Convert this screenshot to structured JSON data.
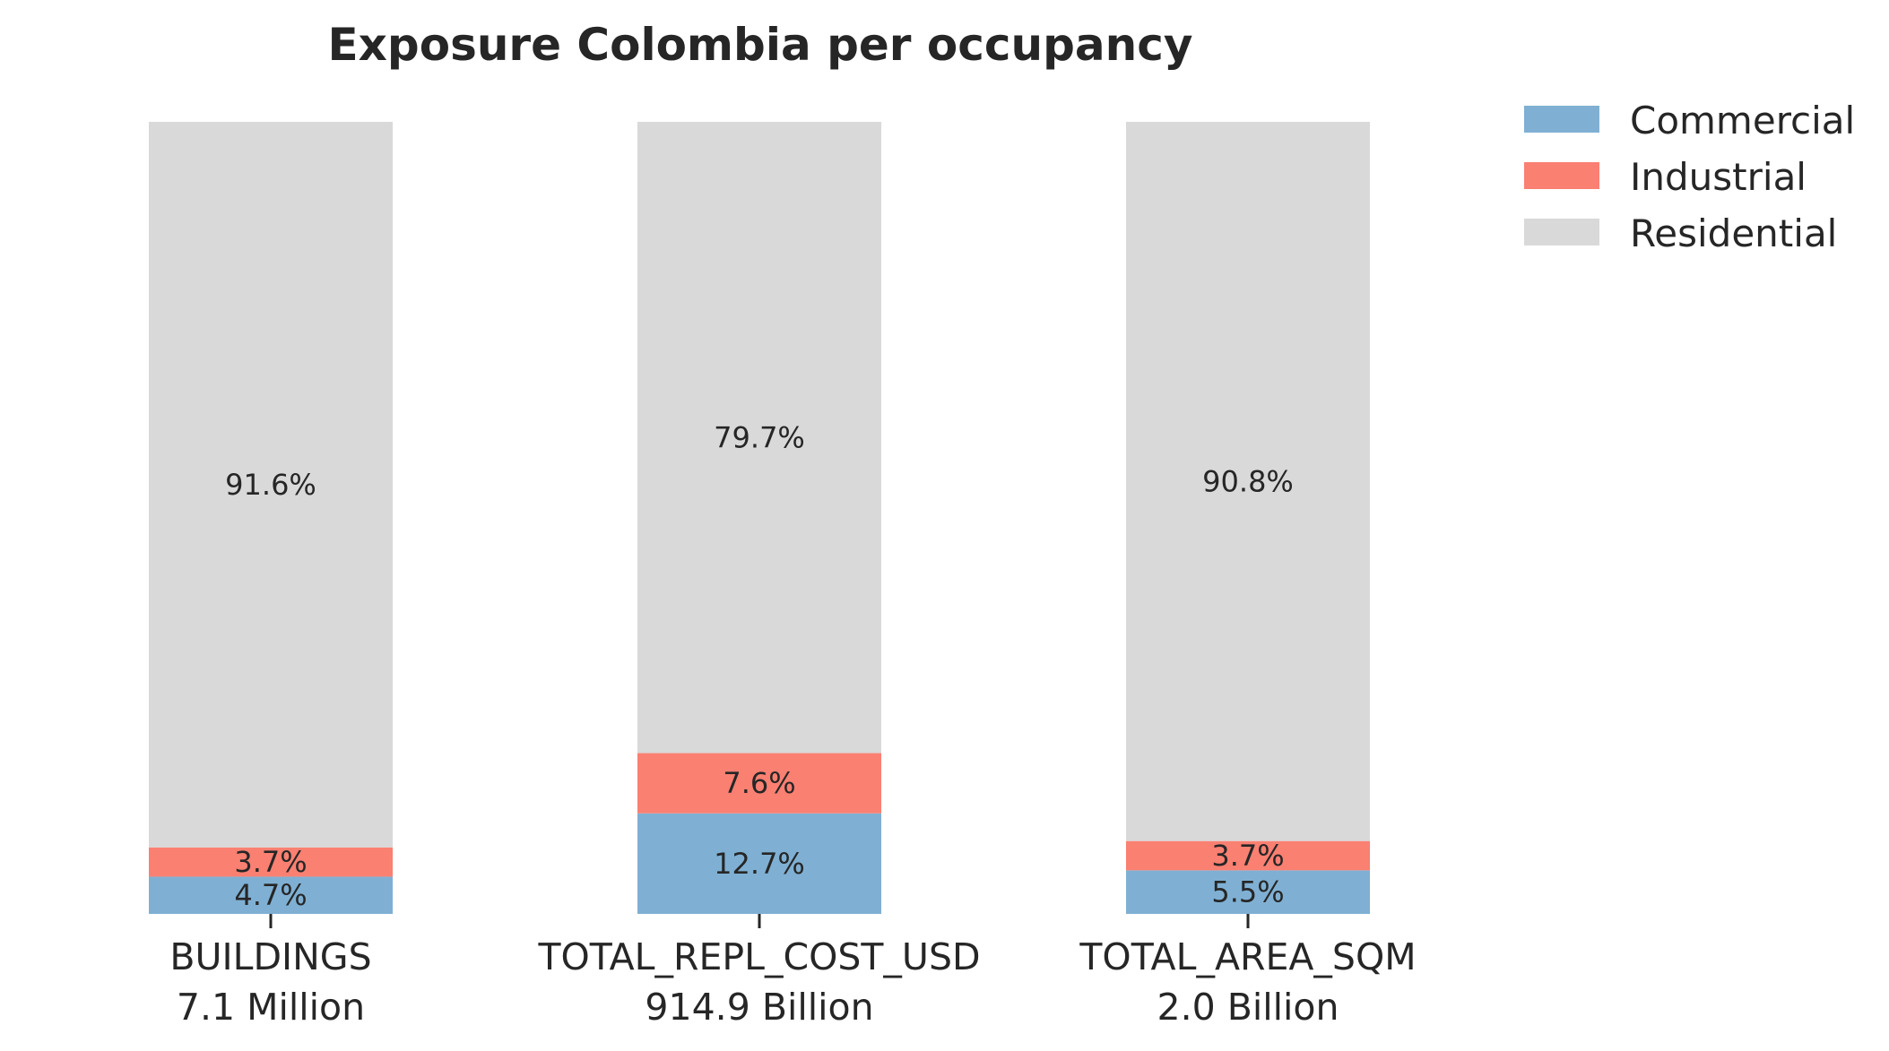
{
  "chart_data": {
    "type": "bar",
    "stacked": true,
    "normalized": true,
    "title": "Exposure Colombia per occupancy",
    "xlabel": "",
    "ylabel": "",
    "ylim": [
      0,
      100
    ],
    "grid": false,
    "legend_position": "top-right",
    "categories": [
      "BUILDINGS",
      "TOTAL_REPL_COST_USD",
      "TOTAL_AREA_SQM"
    ],
    "category_totals": [
      "7.1 Million",
      "914.9 Billion",
      "2.0 Billion"
    ],
    "series": [
      {
        "name": "Commercial",
        "color": "#7fb0d3",
        "values": [
          4.7,
          12.7,
          5.5
        ],
        "labels": [
          "4.7%",
          "12.7%",
          "5.5%"
        ]
      },
      {
        "name": "Industrial",
        "color": "#fa8072",
        "values": [
          3.7,
          7.6,
          3.7
        ],
        "labels": [
          "3.7%",
          "7.6%",
          "3.7%"
        ]
      },
      {
        "name": "Residential",
        "color": "#d9d9d9",
        "values": [
          91.6,
          79.7,
          90.8
        ],
        "labels": [
          "91.6%",
          "79.7%",
          "90.8%"
        ]
      }
    ]
  }
}
